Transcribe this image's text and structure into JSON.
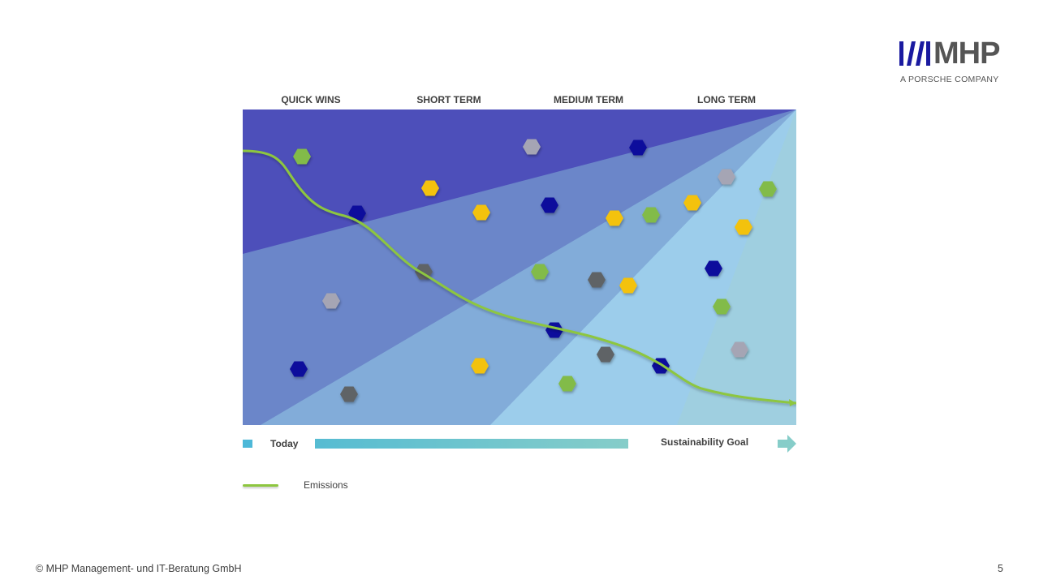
{
  "logo": {
    "wordmark": "MHP",
    "tagline": "A PORSCHE COMPANY"
  },
  "phases": [
    "QUICK WINS",
    "SHORT TERM",
    "MEDIUM TERM",
    "LONG TERM"
  ],
  "timeline": {
    "start_label": "Today",
    "goal_label": "Sustainability  Goal"
  },
  "legend": {
    "emissions_label": "Emissions"
  },
  "footer": {
    "copyright": "© MHP Management- und IT-Beratung GmbH",
    "page_number": "5"
  },
  "colors": {
    "zone_1": "#4d4fba",
    "zone_2": "#6b86c9",
    "zone_3": "#82acd9",
    "zone_4": "#9ccdeb",
    "zone_5": "#9fcfe0",
    "emissions_line": "#8dc63f",
    "navy": "#0a0a9c",
    "green": "#82bb4a",
    "yellow": "#f3c20f",
    "light_gray": "#a5a5b4",
    "dark_gray": "#5e6366",
    "brand_blue": "#1a1aa0"
  }
}
